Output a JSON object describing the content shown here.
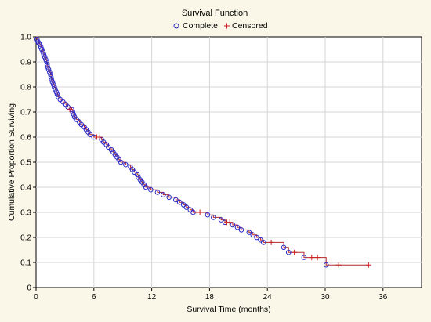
{
  "chart_data": {
    "type": "line",
    "title": "Survival Function",
    "xlabel": "Survival Time (months)",
    "ylabel": "Cumulative Proportion Surviving",
    "xlim": [
      0,
      40
    ],
    "ylim": [
      0,
      1
    ],
    "x_ticks": [
      "0",
      "6",
      "12",
      "18",
      "24",
      "30",
      "36"
    ],
    "y_ticks": [
      "0",
      "0.1",
      "0.2",
      "0.3",
      "0.4",
      "0.5",
      "0.6",
      "0.7",
      "0.8",
      "0.9",
      "1.0"
    ],
    "grid": true,
    "legend_position": "top-center",
    "legend": [
      {
        "label": "Complete",
        "marker": "circle",
        "color": "#2b2bc8"
      },
      {
        "label": "Censored",
        "marker": "plus",
        "color": "#c81e1e"
      }
    ],
    "line_color": "#b5282c",
    "series": [
      {
        "name": "Complete",
        "points": [
          [
            0.1,
            0.99
          ],
          [
            0.2,
            0.98
          ],
          [
            0.3,
            0.975
          ],
          [
            0.4,
            0.97
          ],
          [
            0.5,
            0.96
          ],
          [
            0.6,
            0.95
          ],
          [
            0.7,
            0.94
          ],
          [
            0.8,
            0.93
          ],
          [
            0.9,
            0.92
          ],
          [
            1.0,
            0.91
          ],
          [
            1.1,
            0.9
          ],
          [
            1.15,
            0.89
          ],
          [
            1.2,
            0.88
          ],
          [
            1.3,
            0.87
          ],
          [
            1.4,
            0.86
          ],
          [
            1.5,
            0.85
          ],
          [
            1.55,
            0.84
          ],
          [
            1.6,
            0.83
          ],
          [
            1.7,
            0.82
          ],
          [
            1.8,
            0.81
          ],
          [
            1.9,
            0.8
          ],
          [
            2.0,
            0.79
          ],
          [
            2.1,
            0.78
          ],
          [
            2.2,
            0.77
          ],
          [
            2.3,
            0.76
          ],
          [
            2.5,
            0.75
          ],
          [
            2.8,
            0.74
          ],
          [
            3.1,
            0.73
          ],
          [
            3.3,
            0.72
          ],
          [
            3.7,
            0.71
          ],
          [
            3.8,
            0.7
          ],
          [
            3.9,
            0.69
          ],
          [
            4.0,
            0.68
          ],
          [
            4.2,
            0.67
          ],
          [
            4.5,
            0.66
          ],
          [
            4.7,
            0.65
          ],
          [
            5.0,
            0.64
          ],
          [
            5.2,
            0.63
          ],
          [
            5.4,
            0.62
          ],
          [
            5.6,
            0.61
          ],
          [
            6.0,
            0.6
          ],
          [
            6.8,
            0.59
          ],
          [
            7.0,
            0.58
          ],
          [
            7.3,
            0.57
          ],
          [
            7.5,
            0.56
          ],
          [
            7.8,
            0.55
          ],
          [
            8.0,
            0.54
          ],
          [
            8.2,
            0.53
          ],
          [
            8.4,
            0.52
          ],
          [
            8.6,
            0.51
          ],
          [
            8.8,
            0.5
          ],
          [
            9.3,
            0.49
          ],
          [
            9.8,
            0.48
          ],
          [
            10.0,
            0.47
          ],
          [
            10.2,
            0.46
          ],
          [
            10.5,
            0.45
          ],
          [
            10.6,
            0.44
          ],
          [
            10.8,
            0.43
          ],
          [
            11.0,
            0.42
          ],
          [
            11.2,
            0.41
          ],
          [
            11.4,
            0.4
          ],
          [
            11.9,
            0.39
          ],
          [
            12.6,
            0.38
          ],
          [
            13.2,
            0.37
          ],
          [
            13.8,
            0.36
          ],
          [
            14.5,
            0.35
          ],
          [
            14.9,
            0.34
          ],
          [
            15.3,
            0.33
          ],
          [
            15.6,
            0.32
          ],
          [
            16.0,
            0.31
          ],
          [
            16.3,
            0.3
          ],
          [
            17.8,
            0.29
          ],
          [
            18.4,
            0.28
          ],
          [
            19.2,
            0.27
          ],
          [
            19.6,
            0.26
          ],
          [
            20.4,
            0.25
          ],
          [
            20.9,
            0.24
          ],
          [
            21.3,
            0.23
          ],
          [
            22.1,
            0.22
          ],
          [
            22.5,
            0.21
          ],
          [
            22.9,
            0.2
          ],
          [
            23.3,
            0.19
          ],
          [
            23.6,
            0.18
          ],
          [
            25.7,
            0.16
          ],
          [
            26.2,
            0.14
          ],
          [
            27.8,
            0.12
          ],
          [
            30.1,
            0.09
          ]
        ]
      },
      {
        "name": "Censored",
        "points": [
          [
            3.5,
            0.71
          ],
          [
            6.3,
            0.6
          ],
          [
            6.6,
            0.6
          ],
          [
            16.7,
            0.3
          ],
          [
            17.0,
            0.3
          ],
          [
            19.8,
            0.26
          ],
          [
            20.1,
            0.26
          ],
          [
            24.4,
            0.18
          ],
          [
            26.8,
            0.14
          ],
          [
            28.6,
            0.12
          ],
          [
            29.2,
            0.12
          ],
          [
            31.4,
            0.09
          ],
          [
            34.5,
            0.09
          ]
        ]
      }
    ]
  }
}
